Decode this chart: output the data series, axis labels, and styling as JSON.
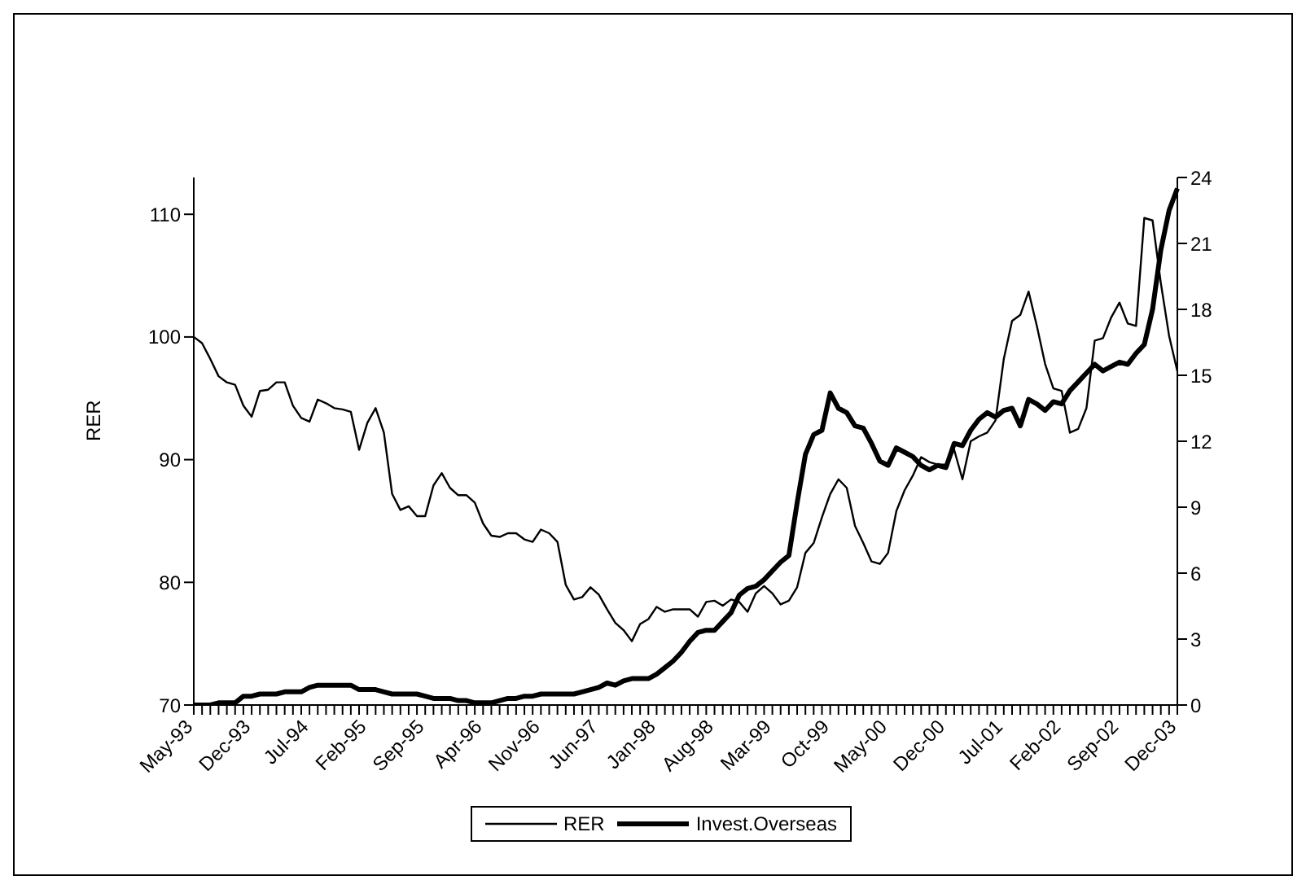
{
  "chart_data": {
    "type": "line",
    "ylabel": "RER",
    "legend": "bottom",
    "marker": "none",
    "grid": false,
    "categories": [
      "May-93",
      null,
      null,
      null,
      null,
      null,
      null,
      "Dec-93",
      null,
      null,
      null,
      null,
      null,
      null,
      "Jul-94",
      null,
      null,
      null,
      null,
      null,
      null,
      "Feb-95",
      null,
      null,
      null,
      null,
      null,
      null,
      "Sep-95",
      null,
      null,
      null,
      null,
      null,
      null,
      "Apr-96",
      null,
      null,
      null,
      null,
      null,
      null,
      "Nov-96",
      null,
      null,
      null,
      null,
      null,
      null,
      "Jun-97",
      null,
      null,
      null,
      null,
      null,
      null,
      "Jan-98",
      null,
      null,
      null,
      null,
      null,
      null,
      "Aug-98",
      null,
      null,
      null,
      null,
      null,
      null,
      "Mar-99",
      null,
      null,
      null,
      null,
      null,
      null,
      "Oct-99",
      null,
      null,
      null,
      null,
      null,
      null,
      "May-00",
      null,
      null,
      null,
      null,
      null,
      null,
      "Dec-00",
      null,
      null,
      null,
      null,
      null,
      null,
      "Jul-01",
      null,
      null,
      null,
      null,
      null,
      null,
      "Feb-02",
      null,
      null,
      null,
      null,
      null,
      null,
      "Sep-02",
      null,
      null,
      null,
      null,
      null,
      null,
      "Dec-03"
    ],
    "ylim": [
      70,
      113
    ],
    "yticks": [
      70,
      80,
      90,
      100,
      110
    ],
    "y2lim": [
      0,
      24
    ],
    "y2ticks": [
      0,
      3,
      6,
      9,
      12,
      15,
      18,
      21,
      24
    ],
    "series": [
      {
        "name": "RER",
        "color": "#000000",
        "values": [
          100,
          99.5,
          98.2,
          96.8,
          96.3,
          96.1,
          94.4,
          93.5,
          95.6,
          95.7,
          96.3,
          96.3,
          94.4,
          93.4,
          93.1,
          94.9,
          94.6,
          94.2,
          94.1,
          93.9,
          90.8,
          93.0,
          94.2,
          92.2,
          87.2,
          85.9,
          86.2,
          85.4,
          85.4,
          87.9,
          88.9,
          87.7,
          87.1,
          87.1,
          86.5,
          84.8,
          83.8,
          83.7,
          84.0,
          84.0,
          83.5,
          83.3,
          84.3,
          84.0,
          83.3,
          79.8,
          78.6,
          78.8,
          79.6,
          79.0,
          77.8,
          76.7,
          76.1,
          75.2,
          76.6,
          77.0,
          78.0,
          77.6,
          77.8,
          77.8,
          77.8,
          77.2,
          78.4,
          78.5,
          78.1,
          78.6,
          78.4,
          77.6,
          79.1,
          79.7,
          79.1,
          78.2,
          78.5,
          79.6,
          82.4,
          83.2,
          85.3,
          87.2,
          88.4,
          87.7,
          84.6,
          83.2,
          81.7,
          81.5,
          82.4,
          85.8,
          87.5,
          88.7,
          90.2,
          89.8,
          89.6,
          89.6,
          90.8,
          88.4,
          91.5,
          91.9,
          92.2,
          93.2,
          98.2,
          101.3,
          101.8,
          103.7,
          100.9,
          97.8,
          95.8,
          95.6,
          92.2,
          92.5,
          94.2,
          99.7,
          99.9,
          101.6,
          102.8,
          101.1,
          100.9,
          109.7,
          109.5,
          104.4,
          100.1,
          97.2
        ]
      },
      {
        "name": "Invest.Overseas",
        "color": "#000000",
        "axis": "y2",
        "values": [
          0,
          0,
          0,
          0.1,
          0.1,
          0.1,
          0.4,
          0.4,
          0.5,
          0.5,
          0.5,
          0.6,
          0.6,
          0.6,
          0.8,
          0.9,
          0.9,
          0.9,
          0.9,
          0.9,
          0.7,
          0.7,
          0.7,
          0.6,
          0.5,
          0.5,
          0.5,
          0.5,
          0.4,
          0.3,
          0.3,
          0.3,
          0.2,
          0.2,
          0.1,
          0.1,
          0.1,
          0.2,
          0.3,
          0.3,
          0.4,
          0.4,
          0.5,
          0.5,
          0.5,
          0.5,
          0.5,
          0.6,
          0.7,
          0.8,
          1.0,
          0.9,
          1.1,
          1.2,
          1.2,
          1.2,
          1.4,
          1.7,
          2.0,
          2.4,
          2.9,
          3.3,
          3.4,
          3.4,
          3.8,
          4.2,
          5.0,
          5.3,
          5.4,
          5.7,
          6.1,
          6.5,
          6.8,
          9.2,
          11.4,
          12.3,
          12.5,
          14.2,
          13.5,
          13.3,
          12.7,
          12.6,
          11.9,
          11.1,
          10.9,
          11.7,
          11.5,
          11.3,
          10.9,
          10.7,
          10.9,
          10.8,
          11.9,
          11.8,
          12.5,
          13.0,
          13.3,
          13.1,
          13.4,
          13.5,
          12.7,
          13.9,
          13.7,
          13.4,
          13.8,
          13.7,
          14.3,
          14.7,
          15.1,
          15.5,
          15.2,
          15.4,
          15.6,
          15.5,
          16.0,
          16.4,
          18.0,
          20.7,
          22.5,
          23.5
        ]
      }
    ]
  }
}
